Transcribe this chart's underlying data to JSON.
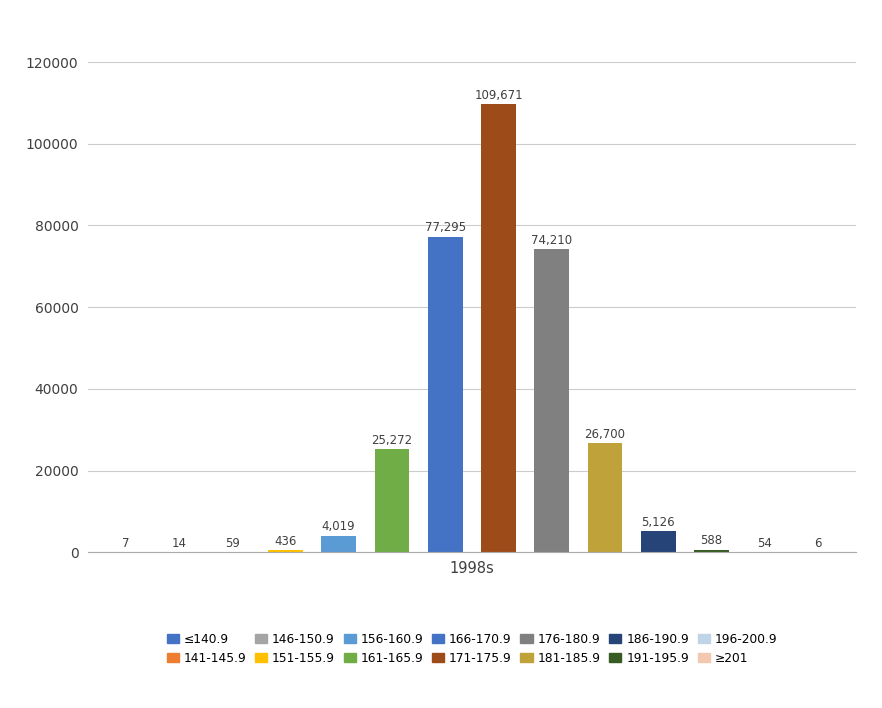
{
  "categories": [
    "≤140.9",
    "141-145.9",
    "146-150.9",
    "151-155.9",
    "156-160.9",
    "161-165.9",
    "166-170.9",
    "171-175.9",
    "176-180.9",
    "181-185.9",
    "186-190.9",
    "191-195.9",
    "196-200.9",
    "≥201"
  ],
  "values": [
    7,
    14,
    59,
    436,
    4019,
    25272,
    77295,
    109671,
    74210,
    26700,
    5126,
    588,
    54,
    6
  ],
  "colors": [
    "#4472C4",
    "#ED7D31",
    "#A5A5A5",
    "#FFC000",
    "#5B9BD5",
    "#70AD47",
    "#4472C4",
    "#9E4B1A",
    "#808080",
    "#BFA23A",
    "#264478",
    "#375C23",
    "#C0D4E8",
    "#F4C8B0"
  ],
  "xlabel": "1998s",
  "ylim": [
    0,
    130000
  ],
  "yticks": [
    0,
    20000,
    40000,
    60000,
    80000,
    100000,
    120000
  ],
  "bar_labels": [
    "7",
    "14",
    "59",
    "436",
    "4,019",
    "25,272",
    "77,295",
    "109,671",
    "74,210",
    "26,700",
    "5,126",
    "588",
    "54",
    "6"
  ],
  "legend_labels": [
    "≤140.9",
    "141-145.9",
    "146-150.9",
    "151-155.9",
    "156-160.9",
    "161-165.9",
    "166-170.9",
    "171-175.9",
    "176-180.9",
    "181-185.9",
    "186-190.9",
    "191-195.9",
    "196-200.9",
    "≥201"
  ],
  "figsize": [
    8.82,
    7.08
  ],
  "dpi": 100
}
